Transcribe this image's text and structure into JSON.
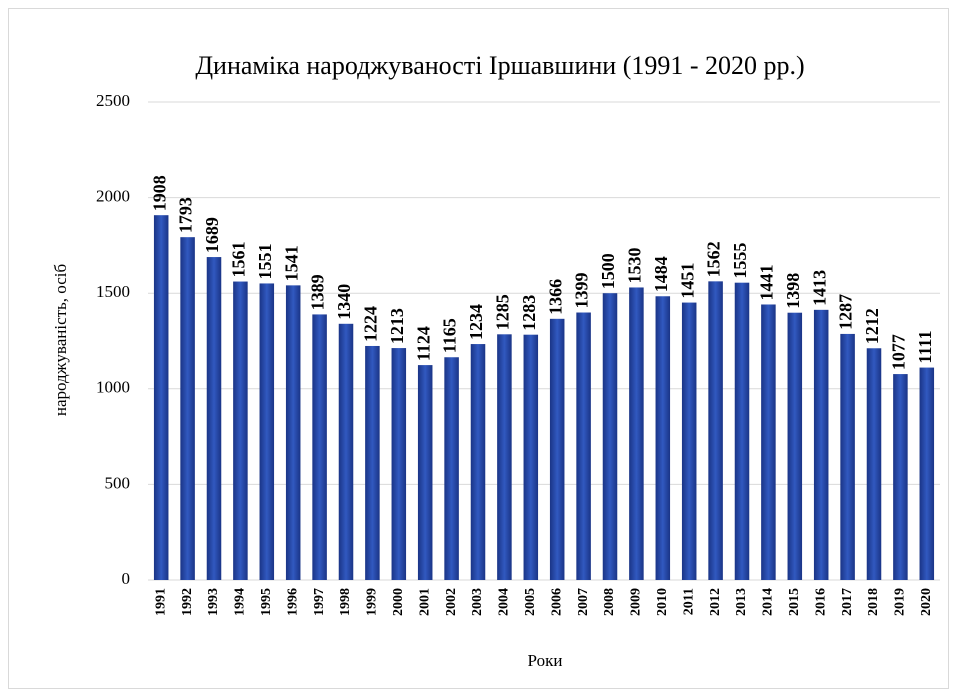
{
  "chart_data": {
    "type": "bar",
    "title": "Динаміка народжуваності Іршавшини (1991 - 2020 рр.)",
    "x_label": "Роки",
    "y_label": "народжуваність, осіб",
    "categories": [
      "1991",
      "1992",
      "1993",
      "1994",
      "1995",
      "1996",
      "1997",
      "1998",
      "1999",
      "2000",
      "2001",
      "2002",
      "2003",
      "2004",
      "2005",
      "2006",
      "2007",
      "2008",
      "2009",
      "2010",
      "2011",
      "2012",
      "2013",
      "2014",
      "2015",
      "2016",
      "2017",
      "2018",
      "2019",
      "2020"
    ],
    "values": [
      1908,
      1793,
      1689,
      1561,
      1551,
      1541,
      1389,
      1340,
      1224,
      1213,
      1124,
      1165,
      1234,
      1285,
      1283,
      1366,
      1399,
      1500,
      1530,
      1484,
      1451,
      1562,
      1555,
      1441,
      1398,
      1413,
      1287,
      1212,
      1077,
      1111
    ],
    "color": "#3159c0",
    "ylim": [
      0,
      2500
    ],
    "yticks": [
      0,
      500,
      1000,
      1500,
      2000,
      2500
    ],
    "grid": true
  }
}
